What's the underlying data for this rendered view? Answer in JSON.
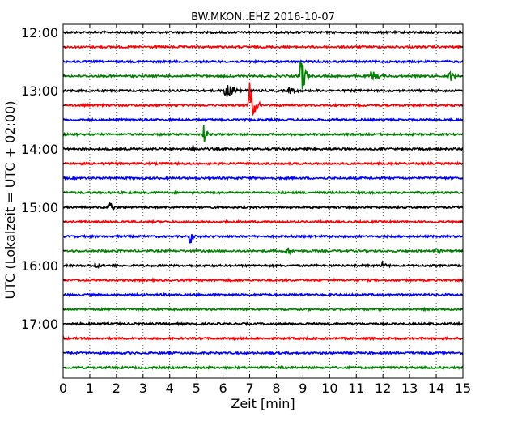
{
  "chart_data": {
    "type": "line",
    "title": "BW.MKON..EHZ 2016-10-07",
    "xlabel": "Zeit  [min]",
    "ylabel": "UTC (Lokalzeit = UTC + 02:00)",
    "xlim": [
      0,
      15
    ],
    "xticks": [
      "0",
      "1",
      "2",
      "3",
      "4",
      "5",
      "6",
      "7",
      "8",
      "9",
      "10",
      "11",
      "12",
      "13",
      "14",
      "15"
    ],
    "yticks": [
      "12:00",
      "13:00",
      "14:00",
      "15:00",
      "16:00",
      "17:00"
    ],
    "grid": "vertical-dotted",
    "trace_colors": [
      "#000000",
      "#ff0000",
      "#0000ff",
      "#008000"
    ],
    "traces_start": "12:00",
    "trace_interval_min": 15,
    "trace_count": 24,
    "events": [
      {
        "trace": 3,
        "minute": 8.95,
        "amplitude": 1.0,
        "duration": 0.3
      },
      {
        "trace": 3,
        "minute": 11.6,
        "amplitude": 0.2,
        "duration": 0.5
      },
      {
        "trace": 3,
        "minute": 14.5,
        "amplitude": 0.25,
        "duration": 0.3
      },
      {
        "trace": 4,
        "minute": 6.1,
        "amplitude": 0.3,
        "duration": 0.8
      },
      {
        "trace": 4,
        "minute": 8.5,
        "amplitude": 0.15,
        "duration": 0.4
      },
      {
        "trace": 5,
        "minute": 7.0,
        "amplitude": 1.0,
        "duration": 0.4
      },
      {
        "trace": 7,
        "minute": 5.3,
        "amplitude": 0.35,
        "duration": 0.2
      },
      {
        "trace": 8,
        "minute": 4.9,
        "amplitude": 0.15,
        "duration": 0.2
      },
      {
        "trace": 12,
        "minute": 1.75,
        "amplitude": 0.4,
        "duration": 0.2
      },
      {
        "trace": 14,
        "minute": 4.8,
        "amplitude": 0.25,
        "duration": 0.2
      },
      {
        "trace": 15,
        "minute": 8.4,
        "amplitude": 0.2,
        "duration": 0.3
      },
      {
        "trace": 15,
        "minute": 14.0,
        "amplitude": 0.12,
        "duration": 0.3
      },
      {
        "trace": 16,
        "minute": 1.2,
        "amplitude": 0.12,
        "duration": 0.3
      },
      {
        "trace": 16,
        "minute": 12.0,
        "amplitude": 0.1,
        "duration": 0.3
      }
    ]
  }
}
